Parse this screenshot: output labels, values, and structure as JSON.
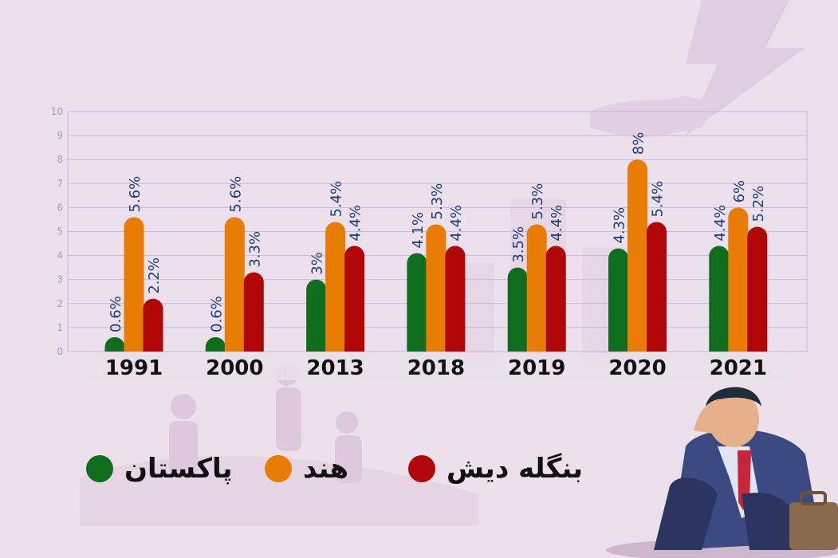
{
  "chart_data": {
    "type": "bar",
    "categories": [
      "1991",
      "2000",
      "2013",
      "2018",
      "2019",
      "2020",
      "2021"
    ],
    "series": [
      {
        "name": "پاکستان",
        "color": "#0f6d1d",
        "values": [
          0.6,
          0.6,
          3,
          4.1,
          3.5,
          4.3,
          4.4
        ],
        "labels": [
          "0.6%",
          "0.6%",
          "3%",
          "4.1%",
          "3.5%",
          "4.3%",
          "4.4%"
        ]
      },
      {
        "name": "هند",
        "color": "#e97c05",
        "values": [
          5.6,
          5.6,
          5.4,
          5.3,
          5.3,
          8,
          6
        ],
        "labels": [
          "5.6%",
          "5.6%",
          "5.4%",
          "5.3%",
          "5.3%",
          "8%",
          "6%"
        ]
      },
      {
        "name": "بنگله دیش",
        "color": "#b00608",
        "values": [
          2.2,
          3.3,
          4.4,
          4.4,
          4.4,
          5.4,
          5.2
        ],
        "labels": [
          "2.2%",
          "3.3%",
          "4.4%",
          "4.4%",
          "4.4%",
          "5.4%",
          "5.2%"
        ]
      }
    ],
    "ylim": [
      0,
      10
    ],
    "yticks": [
      "0",
      "1",
      "2",
      "3",
      "4",
      "5",
      "6",
      "7",
      "8",
      "9",
      "10"
    ],
    "grid": true,
    "legend_position": "bottom"
  }
}
